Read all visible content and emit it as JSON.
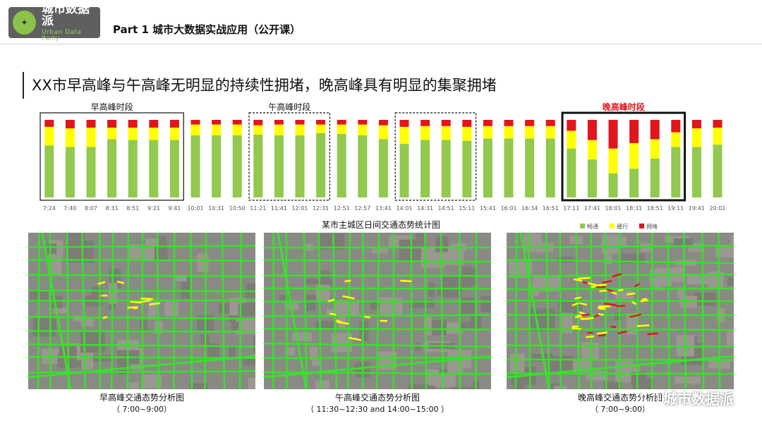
{
  "header": {
    "logo_cn": "城市数据派",
    "logo_en": "Urban Data Party",
    "part_title": "Part 1  城市大数据实战应用（公开课）"
  },
  "headline": "XX市早高峰与午高峰无明显的持续性拥堵，晚高峰具有明显的集聚拥堵",
  "chart_data": {
    "type": "bar",
    "stacked": true,
    "orientation": "vertical",
    "title": "某市主城区日间交通态势统计图",
    "categories": [
      "7:24",
      "7:40",
      "8:07",
      "8:31",
      "8:51",
      "9:21",
      "9:41",
      "10:01",
      "10:31",
      "10:50",
      "11:21",
      "11:41",
      "12:01",
      "12:31",
      "12:51",
      "12:57",
      "13:41",
      "14:01",
      "14:31",
      "14:51",
      "15:11",
      "15:41",
      "16:01",
      "16:34",
      "16:51",
      "17:11",
      "17:41",
      "18:01",
      "18:31",
      "18:51",
      "19:11",
      "19:41",
      "20:01"
    ],
    "series": [
      {
        "name": "畅通",
        "color": "#92c94e",
        "values": [
          67,
          65,
          65,
          75,
          74,
          74,
          74,
          80,
          80,
          80,
          81,
          80,
          80,
          83,
          82,
          80,
          75,
          69,
          74,
          74,
          73,
          76,
          76,
          76,
          76,
          63,
          49,
          31,
          37,
          50,
          65,
          65,
          68
        ]
      },
      {
        "name": "缓行",
        "color": "#ffff00",
        "values": [
          24,
          24,
          25,
          15,
          16,
          16,
          16,
          14,
          14,
          14,
          12,
          14,
          14,
          11,
          12,
          14,
          18,
          22,
          18,
          18,
          18,
          16,
          16,
          16,
          16,
          23,
          25,
          32,
          33,
          25,
          19,
          24,
          22
        ]
      },
      {
        "name": "拥堵",
        "color": "#e0161d",
        "values": [
          9,
          11,
          10,
          10,
          10,
          10,
          10,
          6,
          6,
          6,
          7,
          6,
          6,
          6,
          6,
          6,
          7,
          9,
          8,
          8,
          9,
          8,
          8,
          8,
          8,
          14,
          26,
          37,
          30,
          25,
          16,
          11,
          10
        ]
      }
    ],
    "ylim": [
      0,
      100
    ],
    "grid": false,
    "legend": "bottom-right",
    "period_groups": [
      {
        "label": "早高峰时段",
        "from": 0,
        "to": 6,
        "style": "solid"
      },
      {
        "label": "午高峰时段",
        "from": 10,
        "to": 13,
        "style": "dashed"
      },
      {
        "label": "",
        "from": 17,
        "to": 20,
        "style": "dashed"
      },
      {
        "label": "晚高峰时段",
        "from": 25,
        "to": 30,
        "style": "bold",
        "color": "#e0161d"
      }
    ]
  },
  "maps": [
    {
      "caption": "早高峰交通态势分析图",
      "time": "（ 7:00~9:00）",
      "congestion": "low"
    },
    {
      "caption": "午高峰交通态势分析图",
      "time": "（ 11:30~12:30 and 14:00~15:00 ）",
      "congestion": "low"
    },
    {
      "caption": "晚高峰交通态势分析图",
      "time": "（ 7:00~9:00）",
      "congestion": "high"
    }
  ],
  "watermark": "城市数据派"
}
